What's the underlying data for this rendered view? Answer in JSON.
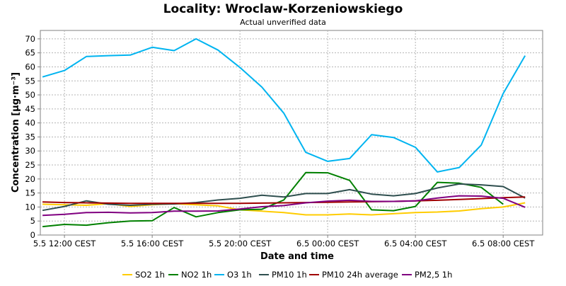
{
  "chart_data": {
    "type": "line",
    "title": "Locality: Wroclaw-Korzeniowskiego",
    "subtitle": "Actual unverified data",
    "xlabel": "Date and time",
    "ylabel": "Concentration [µg·m⁻³]",
    "ylim": [
      0,
      73
    ],
    "yticks": [
      0,
      5,
      10,
      15,
      20,
      25,
      30,
      35,
      40,
      45,
      50,
      55,
      60,
      65,
      70
    ],
    "xlim": [
      10.9,
      33.8
    ],
    "xticks": [
      {
        "hour": 12,
        "label": "5.5 12:00 CEST"
      },
      {
        "hour": 16,
        "label": "5.5 16:00 CEST"
      },
      {
        "hour": 20,
        "label": "5.5 20:00 CEST"
      },
      {
        "hour": 24,
        "label": "6.5 00:00 CEST"
      },
      {
        "hour": 28,
        "label": "6.5 04:00 CEST"
      },
      {
        "hour": 32,
        "label": "6.5 08:00 CEST"
      }
    ],
    "grid": true,
    "legend_position": "bottom",
    "x": [
      11,
      12,
      13,
      14,
      15,
      16,
      17,
      18,
      19,
      20,
      21,
      22,
      23,
      24,
      25,
      26,
      27,
      28,
      29,
      30,
      31,
      32,
      33
    ],
    "series": [
      {
        "name": "SO2 1h",
        "color": "#ffcc00",
        "values": [
          11,
          10.8,
          10.6,
          11.2,
          10.2,
          10.8,
          11.2,
          10.8,
          10.4,
          9,
          8.5,
          8,
          7.2,
          7.2,
          7.5,
          7.2,
          7.6,
          8,
          8.2,
          8.6,
          9.4,
          10,
          11.5
        ]
      },
      {
        "name": "NO2 1h",
        "color": "#008000",
        "values": [
          3,
          3.8,
          3.5,
          4.4,
          5,
          5.1,
          9.8,
          6.5,
          8,
          9,
          9.2,
          12.5,
          22.3,
          22.2,
          19.5,
          9,
          8.7,
          10.2,
          18.8,
          18.5,
          17,
          11,
          null
        ]
      },
      {
        "name": "O3 1h",
        "color": "#00b4f0",
        "values": [
          56.4,
          58.7,
          63.7,
          64,
          64.2,
          67,
          65.8,
          70,
          66,
          59.8,
          52.8,
          43.5,
          29.5,
          26.3,
          27.3,
          35.8,
          34.8,
          31.3,
          22.5,
          24.1,
          32.1,
          50.5,
          64
        ]
      },
      {
        "name": "PM10 1h",
        "color": "#2f4f4f",
        "values": [
          8.8,
          10.2,
          12.2,
          11,
          10.6,
          11,
          11.1,
          11.6,
          12.5,
          13.1,
          14.2,
          13.6,
          14.8,
          14.8,
          16.2,
          14.6,
          14,
          14.8,
          16.8,
          18.2,
          17.9,
          17.3,
          13.2
        ]
      },
      {
        "name": "PM10 24h average",
        "color": "#a00000",
        "values": [
          11.8,
          11.6,
          11.5,
          11.4,
          11.3,
          11.3,
          11.3,
          11.3,
          11.3,
          11.3,
          11.4,
          11.5,
          11.6,
          11.7,
          11.8,
          11.9,
          12,
          12.2,
          12.4,
          12.7,
          13,
          13.3,
          13.6
        ]
      },
      {
        "name": "PM2,5 1h",
        "color": "#800080",
        "values": [
          7,
          7.4,
          8,
          8.1,
          7.9,
          8,
          8.5,
          8.5,
          8.6,
          9.3,
          10.1,
          10.5,
          11.5,
          12.1,
          12.4,
          12,
          12,
          12.2,
          13.2,
          14,
          13.9,
          13.1,
          9.9
        ]
      }
    ]
  }
}
